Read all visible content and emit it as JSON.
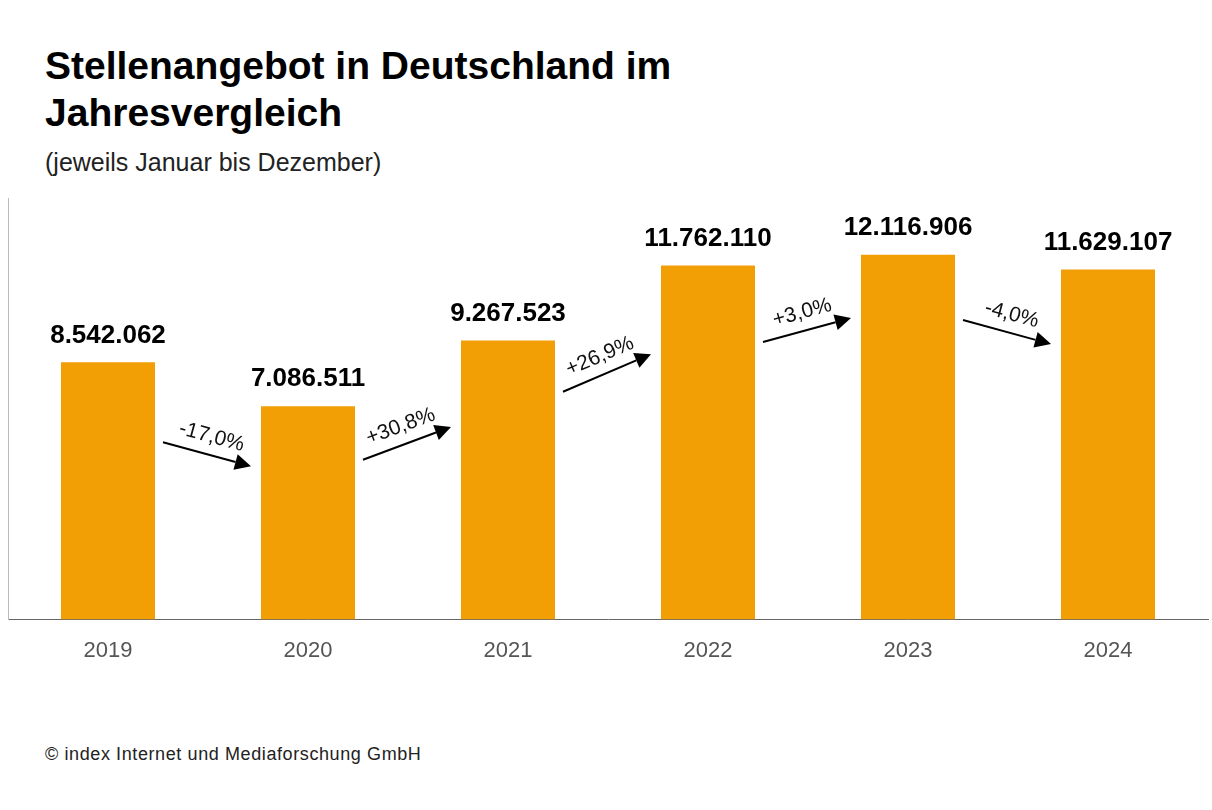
{
  "chart_data": {
    "type": "bar",
    "title": "Stellenangebot in Deutschland im Jahresvergleich",
    "subtitle": "(jeweils Januar bis Dezember)",
    "source": "© index Internet und Mediaforschung GmbH",
    "categories": [
      "2019",
      "2020",
      "2021",
      "2022",
      "2023",
      "2024"
    ],
    "values": [
      8542062,
      7086511,
      9267523,
      11762110,
      12116906,
      11629107
    ],
    "value_labels": [
      "8.542.062",
      "7.086.511",
      "9.267.523",
      "11.762.110",
      "12.116.906",
      "11.629.107"
    ],
    "annotations": [
      "-17,0%",
      "+30,8%",
      "+26,9%",
      "+3,0%",
      "-4,0%"
    ],
    "color": "#f29f05",
    "ylim": [
      0,
      14000000
    ],
    "grid": false,
    "data_labels": true,
    "tick_labels": "x"
  }
}
